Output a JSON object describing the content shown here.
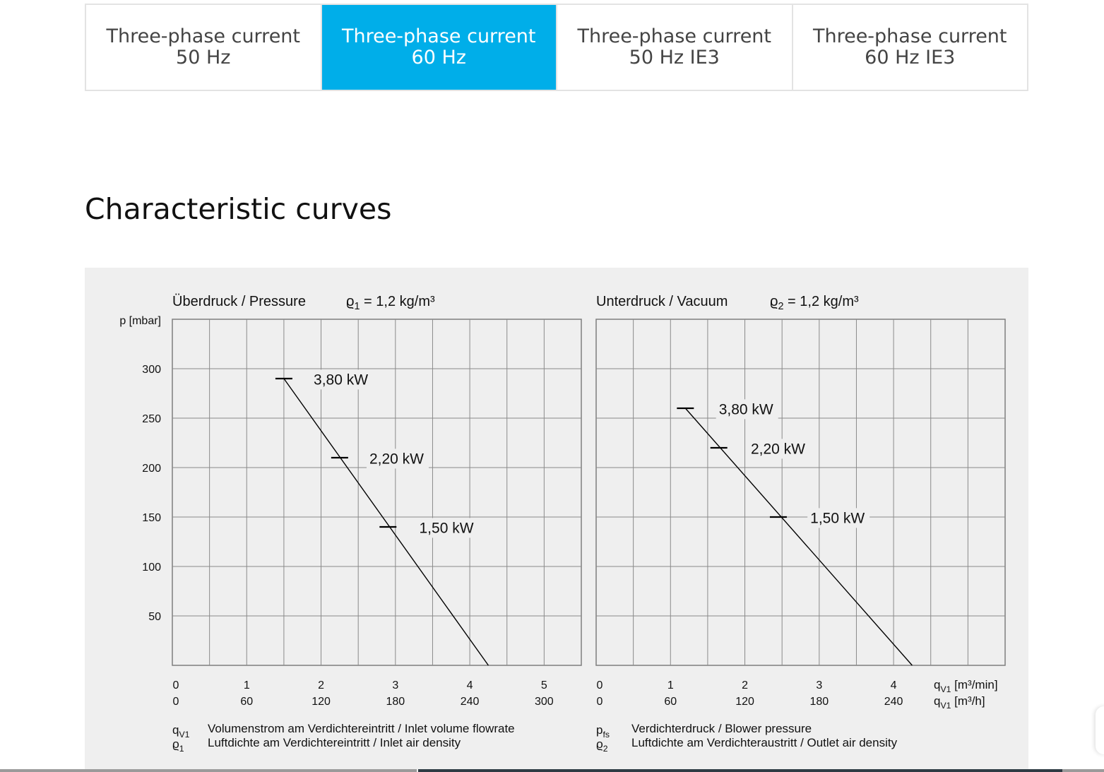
{
  "tabs": [
    {
      "line1": "Three-phase current",
      "line2": "50 Hz",
      "active": false
    },
    {
      "line1": "Three-phase current",
      "line2": "60 Hz",
      "active": true
    },
    {
      "line1": "Three-phase current",
      "line2": "50 Hz IE3",
      "active": false
    },
    {
      "line1": "Three-phase current",
      "line2": "60 Hz IE3",
      "active": false
    }
  ],
  "section_title": "Characteristic curves",
  "colors": {
    "accent": "#00aee9",
    "panel_bg": "#efefef",
    "grid": "#808080",
    "curve": "#000000"
  },
  "y_unit_label": "p [mbar]",
  "chart_data": [
    {
      "type": "line",
      "title": "Überdruck / Pressure",
      "density_symbol": "ϱ",
      "density_sub": "1",
      "density_value": "= 1,2 kg/m³",
      "ylabel": "p [mbar]",
      "ylim": [
        0,
        350
      ],
      "yticks": [
        50,
        100,
        150,
        200,
        250,
        300
      ],
      "xlim": [
        0,
        5.5
      ],
      "xticks": [
        0,
        1,
        2,
        3,
        4,
        5
      ],
      "xticklabels_min": [
        "0",
        "1",
        "2",
        "3",
        "4",
        "5"
      ],
      "xticklabels_h": [
        "0",
        "60",
        "120",
        "180",
        "240",
        "300"
      ],
      "xunit_min": "",
      "xunit_h": "",
      "grid": true,
      "series": [
        {
          "x": [
            1.5,
            4.25
          ],
          "y": [
            290,
            0
          ]
        }
      ],
      "markers": [
        {
          "x": 1.5,
          "y": 290,
          "label": "3,80 kW",
          "lx": 1.9,
          "ly": 284
        },
        {
          "x": 2.25,
          "y": 210,
          "label": "2,20 kW",
          "lx": 2.65,
          "ly": 204
        },
        {
          "x": 2.9,
          "y": 140,
          "label": "1,50 kW",
          "lx": 3.32,
          "ly": 134
        }
      ],
      "legend_rows": [
        {
          "sym": "q",
          "sub": "V1",
          "text": "Volumenstrom am Verdichtereintritt / Inlet volume flowrate"
        },
        {
          "sym": "ϱ",
          "sub": "1",
          "text": "Luftdichte am Verdichtereintritt / Inlet air density"
        }
      ]
    },
    {
      "type": "line",
      "title": "Unterdruck / Vacuum",
      "density_symbol": "ϱ",
      "density_sub": "2",
      "density_value": "= 1,2 kg/m³",
      "ylim": [
        0,
        350
      ],
      "yticks": [
        50,
        100,
        150,
        200,
        250,
        300
      ],
      "xlim": [
        0,
        5.5
      ],
      "xticks": [
        0,
        1,
        2,
        3,
        4
      ],
      "xticklabels_min": [
        "0",
        "1",
        "2",
        "3",
        "4"
      ],
      "xticklabels_h": [
        "0",
        "60",
        "120",
        "180",
        "240"
      ],
      "xunit_min": "q",
      "xunit_min_sub": "V1",
      "xunit_min_text": "[m³/min]",
      "xunit_h": "q",
      "xunit_h_sub": "V1",
      "xunit_h_text": "[m³/h]",
      "grid": true,
      "series": [
        {
          "x": [
            1.2,
            4.25
          ],
          "y": [
            260,
            0
          ]
        }
      ],
      "markers": [
        {
          "x": 1.2,
          "y": 260,
          "label": "3,80 kW",
          "lx": 1.65,
          "ly": 254
        },
        {
          "x": 1.65,
          "y": 220,
          "label": "2,20 kW",
          "lx": 2.08,
          "ly": 214
        },
        {
          "x": 2.45,
          "y": 150,
          "label": "1,50 kW",
          "lx": 2.88,
          "ly": 144
        }
      ],
      "legend_rows": [
        {
          "sym": "p",
          "sub": "fs",
          "text": "Verdichterdruck / Blower pressure"
        },
        {
          "sym": "ϱ",
          "sub": "2",
          "text": "Luftdichte am Verdichteraustritt / Outlet air density"
        }
      ]
    }
  ]
}
